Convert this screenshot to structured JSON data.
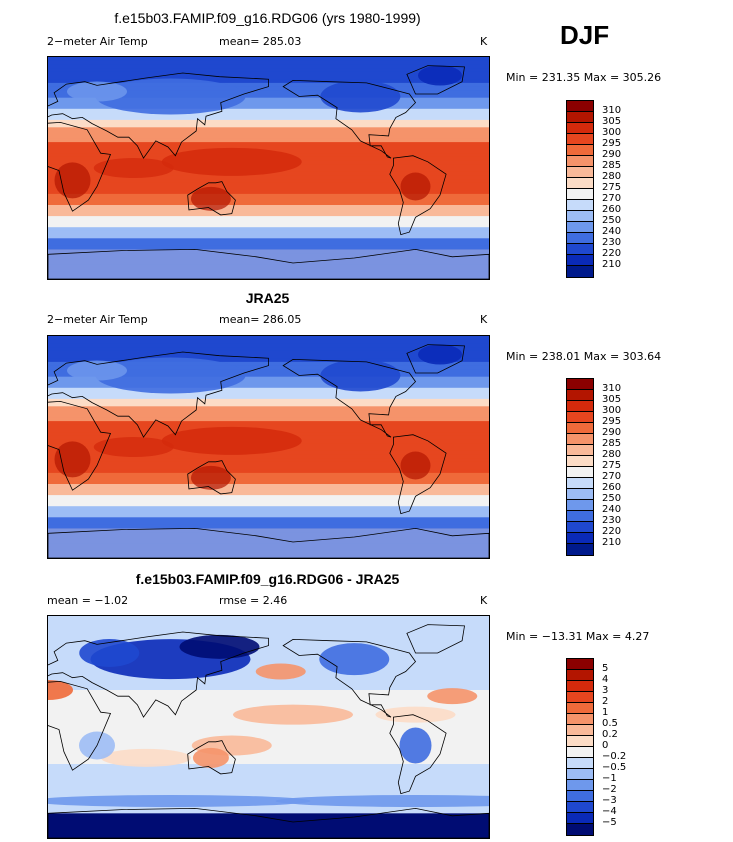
{
  "season": "DJF",
  "panels": [
    {
      "title": "f.e15b03.FAMIP.f09_g16.RDG06 (yrs 1980-1999)",
      "title_bold": false,
      "variable": "2−meter Air Temp",
      "stat1": "mean=  285.03",
      "stat2": "",
      "units": "K",
      "range": "Min = 231.35 Max = 305.26",
      "type": "abs"
    },
    {
      "title": "JRA25",
      "title_bold": true,
      "variable": "2−meter Air Temp",
      "stat1": "mean=  286.05",
      "stat2": "",
      "units": "K",
      "range": "Min = 238.01 Max = 303.64",
      "type": "abs"
    },
    {
      "title": "f.e15b03.FAMIP.f09_g16.RDG06 - JRA25",
      "title_bold": true,
      "variable": "mean =   −1.02",
      "stat1": "rmse =     2.46",
      "stat2": "",
      "units": "K",
      "range": "Min = −13.31 Max =    4.27",
      "type": "diff"
    }
  ],
  "colorbars": {
    "abs": {
      "labels": [
        "310",
        "305",
        "300",
        "295",
        "290",
        "285",
        "280",
        "275",
        "270",
        "260",
        "250",
        "240",
        "230",
        "220",
        "210"
      ],
      "colors": [
        "#8b0000",
        "#b31500",
        "#d42a0c",
        "#e6461f",
        "#ef6a3a",
        "#f5936a",
        "#f9b999",
        "#fcdcc6",
        "#f2f2f2",
        "#c6dbfa",
        "#9dbdf5",
        "#6e98ec",
        "#3f6de0",
        "#1f48cf",
        "#0a2ab8",
        "#001a8c"
      ]
    },
    "diff": {
      "labels": [
        "5",
        "4",
        "3",
        "2",
        "1",
        "0.5",
        "0.2",
        "0",
        "−0.2",
        "−0.5",
        "−1",
        "−2",
        "−3",
        "−4",
        "−5"
      ],
      "colors": [
        "#8b0000",
        "#b31500",
        "#d42a0c",
        "#e6461f",
        "#ef6a3a",
        "#f5936a",
        "#f9b999",
        "#fcdcc6",
        "#f2f2f2",
        "#c6dbfa",
        "#9dbdf5",
        "#6e98ec",
        "#3f6de0",
        "#1f48cf",
        "#0a2ab8",
        "#000c73"
      ]
    }
  }
}
